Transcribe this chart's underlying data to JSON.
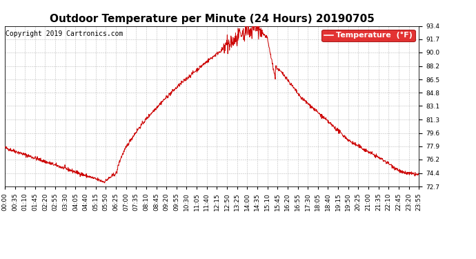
{
  "title": "Outdoor Temperature per Minute (24 Hours) 20190705",
  "copyright_text": "Copyright 2019 Cartronics.com",
  "legend_label": "Temperature  (°F)",
  "line_color": "#cc0000",
  "background_color": "#ffffff",
  "grid_color": "#bbbbbb",
  "ylim": [
    72.7,
    93.4
  ],
  "yticks": [
    72.7,
    74.4,
    76.2,
    77.9,
    79.6,
    81.3,
    83.1,
    84.8,
    86.5,
    88.2,
    90.0,
    91.7,
    93.4
  ],
  "xtick_labels": [
    "00:00",
    "00:35",
    "01:10",
    "01:45",
    "02:20",
    "02:55",
    "03:30",
    "04:05",
    "04:40",
    "05:15",
    "05:50",
    "06:25",
    "07:00",
    "07:35",
    "08:10",
    "08:45",
    "09:20",
    "09:55",
    "10:30",
    "11:05",
    "11:40",
    "12:15",
    "12:50",
    "13:25",
    "14:00",
    "14:35",
    "15:10",
    "15:45",
    "16:20",
    "16:55",
    "17:30",
    "18:05",
    "18:40",
    "19:15",
    "19:50",
    "20:25",
    "21:00",
    "21:35",
    "22:10",
    "22:45",
    "23:20",
    "23:55"
  ],
  "title_fontsize": 11,
  "tick_fontsize": 6.5,
  "legend_fontsize": 8,
  "copyright_fontsize": 7
}
